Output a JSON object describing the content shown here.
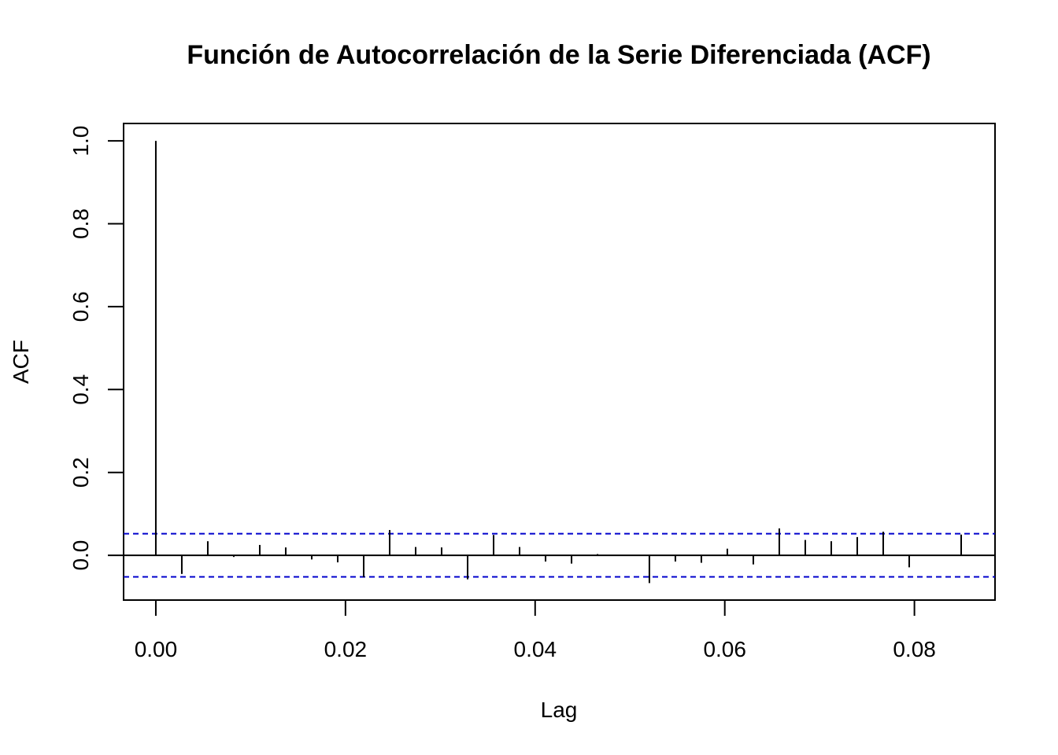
{
  "chart_data": {
    "type": "bar",
    "subtype": "acf-stem",
    "title": "Función de Autocorrelación de la Serie Diferenciada (ACF)",
    "xlabel": "Lag",
    "ylabel": "ACF",
    "xlim": [
      -0.0034,
      0.0885
    ],
    "ylim": [
      -0.108,
      1.042
    ],
    "x_ticks": [
      0.0,
      0.02,
      0.04,
      0.06,
      0.08
    ],
    "x_tick_labels": [
      "0.00",
      "0.02",
      "0.04",
      "0.06",
      "0.08"
    ],
    "y_ticks": [
      0.0,
      0.2,
      0.4,
      0.6,
      0.8,
      1.0
    ],
    "y_tick_labels": [
      "0.0",
      "0.2",
      "0.4",
      "0.6",
      "0.8",
      "1.0"
    ],
    "confidence_bound": 0.052,
    "confidence_color": "#0000cc",
    "grid": false,
    "series": [
      {
        "lags": [
          0.0,
          0.00274,
          0.00548,
          0.00822,
          0.01096,
          0.0137,
          0.01644,
          0.01918,
          0.02192,
          0.02466,
          0.0274,
          0.03014,
          0.03288,
          0.03562,
          0.03836,
          0.0411,
          0.04384,
          0.04658,
          0.04932,
          0.05205,
          0.05479,
          0.05753,
          0.06027,
          0.06301,
          0.06575,
          0.06849,
          0.07123,
          0.07397,
          0.07671,
          0.07945,
          0.08219,
          0.08493
        ],
        "values": [
          1.0,
          -0.045,
          0.034,
          -0.004,
          0.025,
          0.019,
          -0.01,
          -0.017,
          -0.053,
          0.061,
          0.02,
          0.019,
          -0.058,
          0.049,
          0.02,
          -0.015,
          -0.02,
          0.003,
          0.001,
          -0.067,
          -0.015,
          -0.018,
          0.016,
          -0.022,
          0.065,
          0.037,
          0.034,
          0.044,
          0.057,
          -0.029,
          0.0,
          0.05
        ]
      }
    ]
  }
}
